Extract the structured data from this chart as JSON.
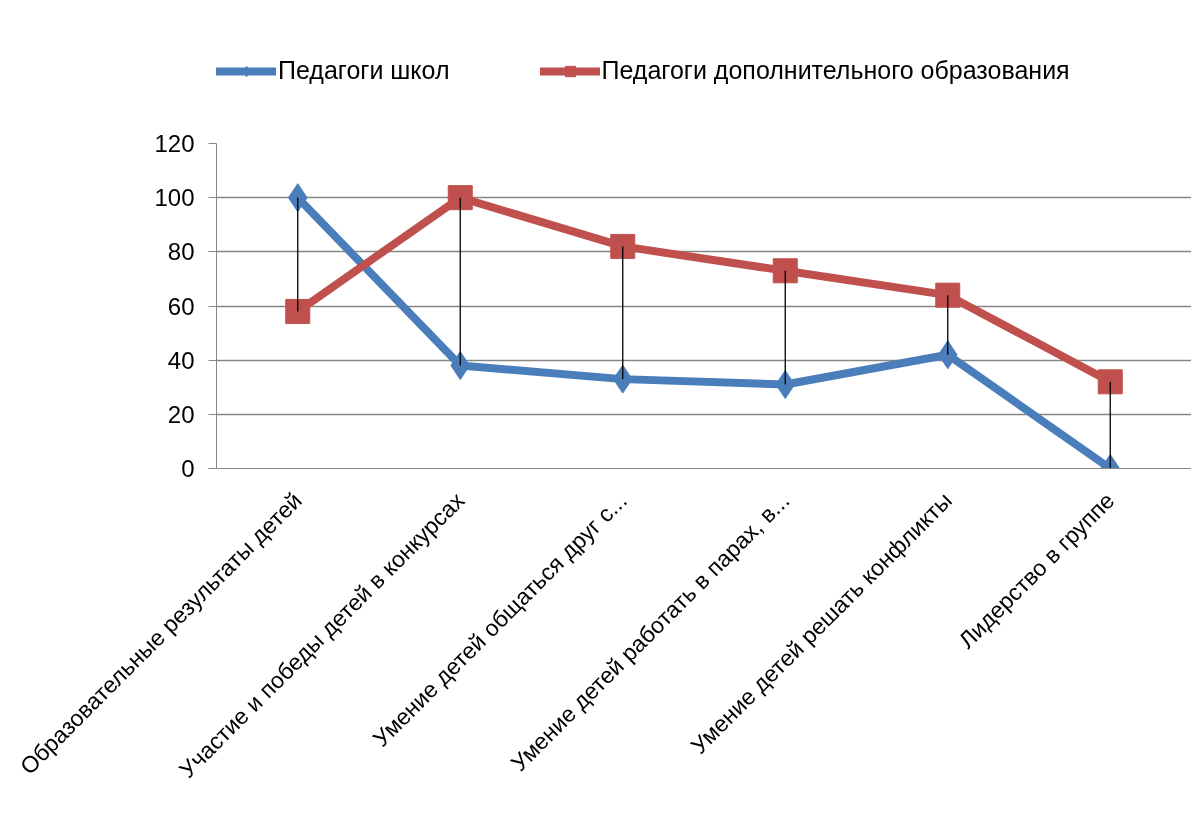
{
  "chart_data": {
    "type": "line",
    "categories": [
      "Образовательные результаты детей",
      "Участие и победы детей в конкурсах",
      "Умение детей общаться друг с...",
      "Умение детей работать в парах, в...",
      "Умение детей решать конфликты",
      "Лидерство в группе"
    ],
    "series": [
      {
        "name": "Педагоги школ",
        "color": "#4a7ebb",
        "marker": "diamond",
        "values": [
          100,
          38,
          33,
          31,
          42,
          0
        ],
        "errors": [
          [
            58,
            100
          ],
          [
            38,
            100
          ],
          [
            33,
            82
          ],
          [
            31,
            73
          ],
          [
            42,
            64
          ],
          [
            0,
            32
          ]
        ]
      },
      {
        "name": "Педагоги дополнительного образования",
        "color": "#c0504d",
        "marker": "square",
        "values": [
          58,
          100,
          82,
          73,
          64,
          32
        ]
      }
    ],
    "ylim": [
      0,
      120
    ],
    "yticks": [
      0,
      20,
      40,
      60,
      80,
      100,
      120
    ],
    "grid": "y",
    "legend": "top"
  }
}
